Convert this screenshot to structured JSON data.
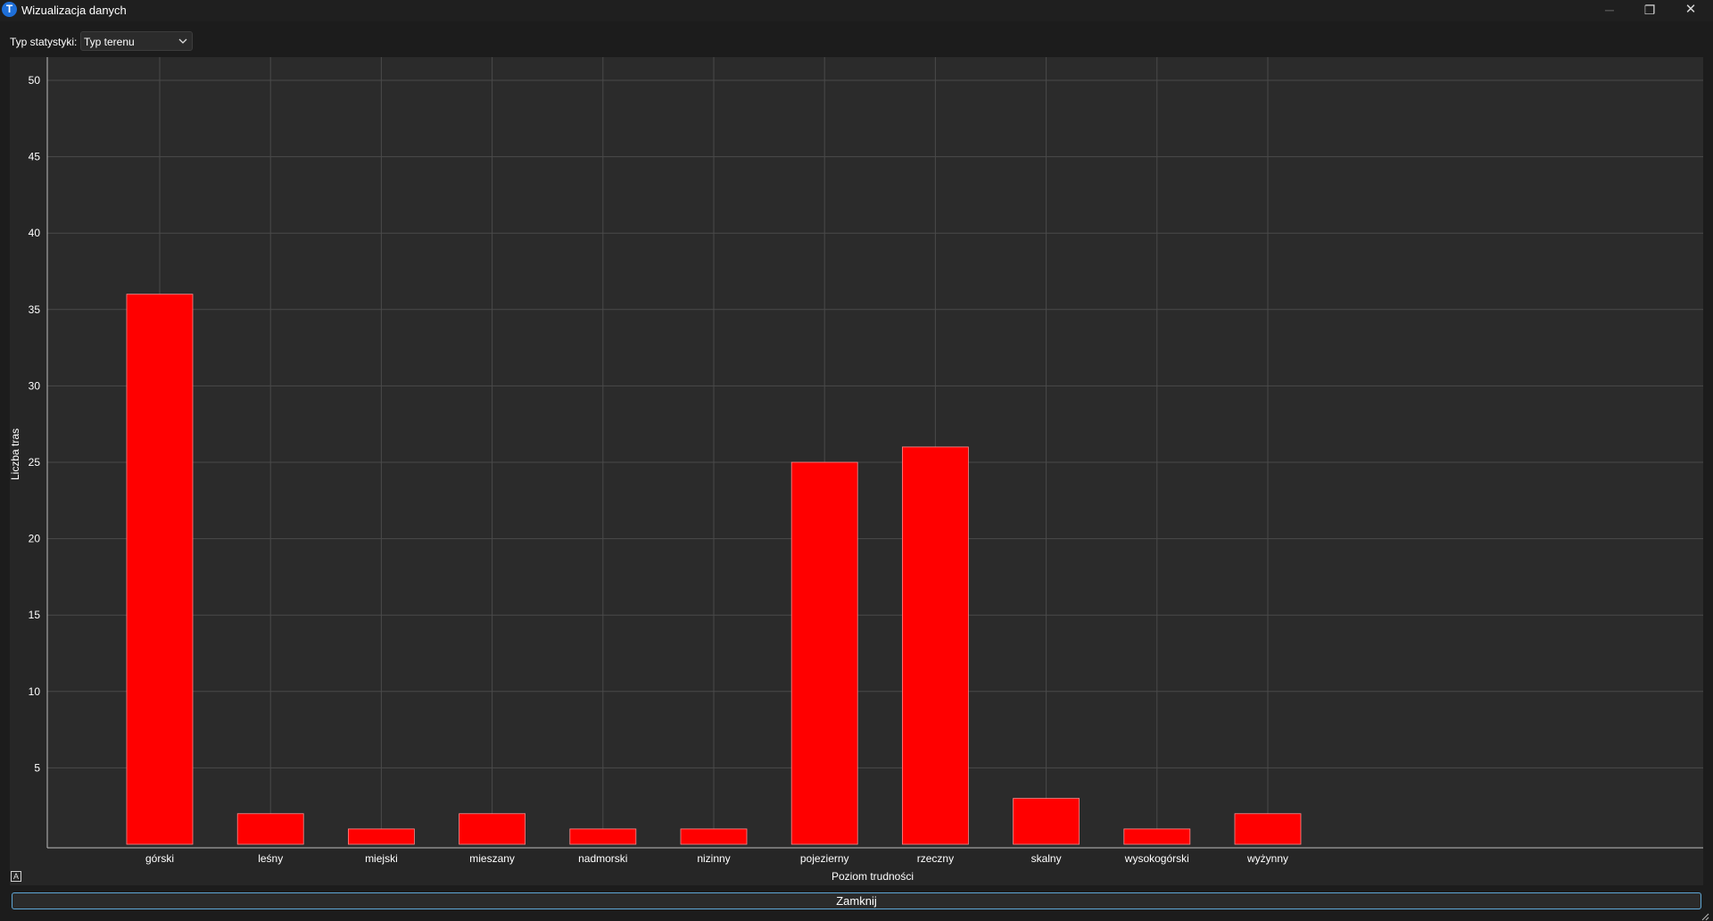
{
  "window": {
    "title": "Wizualizacja danych",
    "icon_letter": "T",
    "controls": {
      "minimize": "─",
      "maximize": "❐",
      "close": "✕"
    }
  },
  "toolbar": {
    "stat_label": "Typ statystyki:",
    "stat_select_value": "Typ terenu"
  },
  "buttons": {
    "close_label": "Zamknij"
  },
  "colors": {
    "bar": "#ff0000",
    "plot_background": "#2b2b2b",
    "panel_background": "#262626",
    "grid": "#4a4a4a",
    "text": "#ffffff"
  },
  "chart_data": {
    "type": "bar",
    "categories": [
      "górski",
      "leśny",
      "miejski",
      "mieszany",
      "nadmorski",
      "nizinny",
      "pojezierny",
      "rzeczny",
      "skalny",
      "wysokogórski",
      "wyżynny"
    ],
    "values": [
      36,
      2,
      1,
      2,
      1,
      1,
      25,
      26,
      3,
      1,
      2
    ],
    "title": "",
    "xlabel": "Poziom trudności",
    "ylabel": "Liczba tras",
    "ylim": [
      0,
      51.5
    ],
    "yticks": [
      5,
      10,
      15,
      20,
      25,
      30,
      35,
      40,
      45,
      50
    ],
    "grid": true,
    "legend": "none"
  }
}
